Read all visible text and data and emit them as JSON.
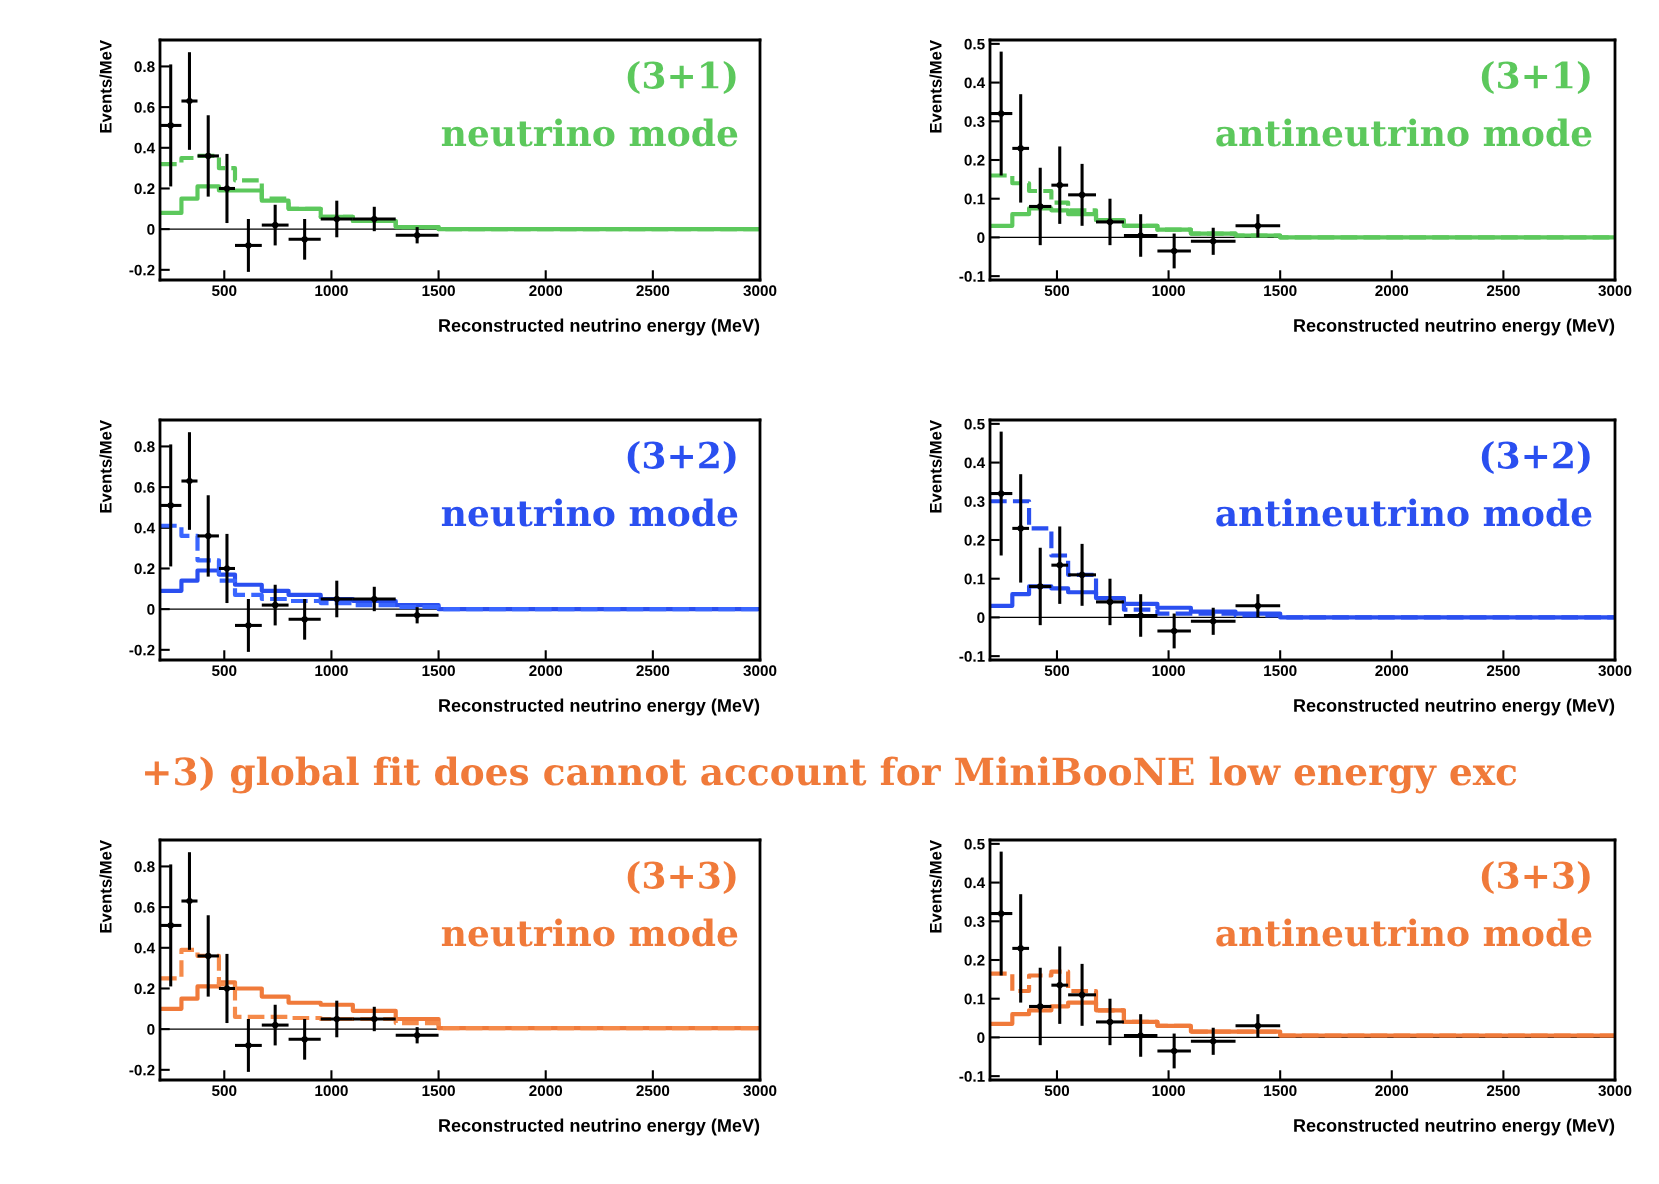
{
  "chart_data": [
    {
      "type": "histogram",
      "title": "(3+1)",
      "subtitle": "neutrino mode",
      "xlabel": "Reconstructed neutrino energy (MeV)",
      "ylabel": "Events/MeV",
      "xlim": [
        200,
        3000
      ],
      "ylim": [
        -0.25,
        0.93
      ],
      "xticks": [
        500,
        1000,
        1500,
        2000,
        2500,
        3000
      ],
      "yticks": [
        -0.2,
        0,
        0.2,
        0.4,
        0.6,
        0.8
      ],
      "ref_lines": [
        {
          "axis": "y",
          "value": 0,
          "color": "#000000"
        }
      ],
      "series": [
        {
          "color": "#5cc85c",
          "line_style": "solid",
          "bins": [
            200,
            300,
            375,
            475,
            550,
            675,
            800,
            950,
            1100,
            1300,
            1500,
            3000
          ],
          "values": [
            0.08,
            0.15,
            0.21,
            0.19,
            0.19,
            0.14,
            0.1,
            0.06,
            0.04,
            0.01,
            0.0
          ]
        },
        {
          "color": "#5cc85c",
          "line_style": "dashed",
          "bins": [
            200,
            300,
            375,
            475,
            550,
            675,
            800,
            950,
            1100,
            1300,
            1500,
            3000
          ],
          "values": [
            0.32,
            0.35,
            0.36,
            0.3,
            0.24,
            0.15,
            0.1,
            0.06,
            0.04,
            0.01,
            0.0
          ]
        },
        {
          "type": "scatter",
          "color": "#000000",
          "x": [
            250,
            337.5,
            425,
            512.5,
            612.5,
            737.5,
            875,
            1025,
            1200,
            1400
          ],
          "values": [
            0.51,
            0.63,
            0.36,
            0.2,
            -0.08,
            0.02,
            -0.05,
            0.05,
            0.05,
            -0.03
          ],
          "errors": [
            0.3,
            0.24,
            0.2,
            0.17,
            0.13,
            0.1,
            0.1,
            0.09,
            0.06,
            0.04
          ],
          "xerrors": [
            50,
            37.5,
            50,
            37.5,
            62.5,
            62.5,
            75,
            75,
            100,
            100
          ]
        }
      ]
    },
    {
      "type": "histogram",
      "title": "(3+1)",
      "subtitle": "antineutrino mode",
      "xlabel": "Reconstructed neutrino energy (MeV)",
      "ylabel": "Events/MeV",
      "xlim": [
        200,
        3000
      ],
      "ylim": [
        -0.11,
        0.51
      ],
      "xticks": [
        500,
        1000,
        1500,
        2000,
        2500,
        3000
      ],
      "yticks": [
        -0.1,
        0,
        0.1,
        0.2,
        0.3,
        0.4,
        0.5
      ],
      "ref_lines": [
        {
          "axis": "y",
          "value": 0,
          "color": "#000000"
        }
      ],
      "series": [
        {
          "color": "#5cc85c",
          "line_style": "solid",
          "bins": [
            200,
            300,
            375,
            475,
            550,
            675,
            800,
            950,
            1100,
            1300,
            1500,
            3000
          ],
          "values": [
            0.03,
            0.06,
            0.075,
            0.07,
            0.06,
            0.045,
            0.03,
            0.02,
            0.01,
            0.005,
            0.0
          ]
        },
        {
          "color": "#5cc85c",
          "line_style": "dashed",
          "bins": [
            200,
            300,
            375,
            475,
            550,
            675,
            800,
            950,
            1100,
            1300,
            1500,
            3000
          ],
          "values": [
            0.16,
            0.14,
            0.12,
            0.09,
            0.07,
            0.045,
            0.03,
            0.02,
            0.01,
            0.005,
            0.0
          ]
        },
        {
          "type": "scatter",
          "color": "#000000",
          "x": [
            250,
            337.5,
            425,
            512.5,
            612.5,
            737.5,
            875,
            1025,
            1200,
            1400
          ],
          "values": [
            0.32,
            0.23,
            0.08,
            0.135,
            0.11,
            0.04,
            0.005,
            -0.035,
            -0.01,
            0.03
          ],
          "errors": [
            0.16,
            0.14,
            0.1,
            0.1,
            0.08,
            0.06,
            0.055,
            0.045,
            0.035,
            0.03
          ],
          "xerrors": [
            50,
            37.5,
            50,
            37.5,
            62.5,
            62.5,
            75,
            75,
            100,
            100
          ]
        }
      ]
    },
    {
      "type": "histogram",
      "title": "(3+2)",
      "subtitle": "neutrino mode",
      "xlabel": "Reconstructed neutrino energy (MeV)",
      "ylabel": "Events/MeV",
      "xlim": [
        200,
        3000
      ],
      "ylim": [
        -0.25,
        0.93
      ],
      "xticks": [
        500,
        1000,
        1500,
        2000,
        2500,
        3000
      ],
      "yticks": [
        -0.2,
        0,
        0.2,
        0.4,
        0.6,
        0.8
      ],
      "ref_lines": [
        {
          "axis": "y",
          "value": 0,
          "color": "#000000"
        }
      ],
      "series": [
        {
          "color": "#2a4ff0",
          "line_style": "solid",
          "bins": [
            200,
            300,
            375,
            475,
            550,
            675,
            800,
            950,
            1100,
            1300,
            1500,
            3000
          ],
          "values": [
            0.09,
            0.14,
            0.19,
            0.17,
            0.12,
            0.09,
            0.07,
            0.05,
            0.04,
            0.02,
            0.0
          ]
        },
        {
          "color": "#3a66ff",
          "line_style": "dashed",
          "bins": [
            200,
            300,
            375,
            475,
            550,
            675,
            800,
            950,
            1100,
            1300,
            1500,
            3000
          ],
          "values": [
            0.41,
            0.36,
            0.24,
            0.14,
            0.07,
            0.05,
            0.04,
            0.03,
            0.02,
            0.01,
            0.0
          ]
        },
        {
          "type": "scatter",
          "color": "#000000",
          "x": [
            250,
            337.5,
            425,
            512.5,
            612.5,
            737.5,
            875,
            1025,
            1200,
            1400
          ],
          "values": [
            0.51,
            0.63,
            0.36,
            0.2,
            -0.08,
            0.02,
            -0.05,
            0.05,
            0.05,
            -0.03
          ],
          "errors": [
            0.3,
            0.24,
            0.2,
            0.17,
            0.13,
            0.1,
            0.1,
            0.09,
            0.06,
            0.04
          ],
          "xerrors": [
            50,
            37.5,
            50,
            37.5,
            62.5,
            62.5,
            75,
            75,
            100,
            100
          ]
        }
      ]
    },
    {
      "type": "histogram",
      "title": "(3+2)",
      "subtitle": "antineutrino mode",
      "xlabel": "Reconstructed neutrino energy (MeV)",
      "ylabel": "Events/MeV",
      "xlim": [
        200,
        3000
      ],
      "ylim": [
        -0.11,
        0.51
      ],
      "xticks": [
        500,
        1000,
        1500,
        2000,
        2500,
        3000
      ],
      "yticks": [
        -0.1,
        0,
        0.1,
        0.2,
        0.3,
        0.4,
        0.5
      ],
      "ref_lines": [
        {
          "axis": "y",
          "value": 0,
          "color": "#000000"
        }
      ],
      "series": [
        {
          "color": "#2a4ff0",
          "line_style": "solid",
          "bins": [
            200,
            300,
            375,
            475,
            550,
            675,
            800,
            950,
            1100,
            1300,
            1500,
            3000
          ],
          "values": [
            0.03,
            0.06,
            0.08,
            0.075,
            0.065,
            0.05,
            0.035,
            0.025,
            0.015,
            0.01,
            0.0
          ]
        },
        {
          "color": "#2a4ff0",
          "line_style": "dashed",
          "bins": [
            200,
            300,
            375,
            475,
            550,
            675,
            800,
            950,
            1100,
            1300,
            1500,
            3000
          ],
          "values": [
            0.3,
            0.3,
            0.23,
            0.16,
            0.11,
            0.05,
            0.02,
            0.01,
            0.01,
            0.005,
            0.0
          ]
        },
        {
          "type": "scatter",
          "color": "#000000",
          "x": [
            250,
            337.5,
            425,
            512.5,
            612.5,
            737.5,
            875,
            1025,
            1200,
            1400
          ],
          "values": [
            0.32,
            0.23,
            0.08,
            0.135,
            0.11,
            0.04,
            0.005,
            -0.035,
            -0.01,
            0.03
          ],
          "errors": [
            0.16,
            0.14,
            0.1,
            0.1,
            0.08,
            0.06,
            0.055,
            0.045,
            0.035,
            0.03
          ],
          "xerrors": [
            50,
            37.5,
            50,
            37.5,
            62.5,
            62.5,
            75,
            75,
            100,
            100
          ]
        }
      ]
    },
    {
      "type": "histogram",
      "title": "(3+3)",
      "subtitle": "neutrino mode",
      "xlabel": "Reconstructed neutrino energy (MeV)",
      "ylabel": "Events/MeV",
      "xlim": [
        200,
        3000
      ],
      "ylim": [
        -0.25,
        0.93
      ],
      "xticks": [
        500,
        1000,
        1500,
        2000,
        2500,
        3000
      ],
      "yticks": [
        -0.2,
        0,
        0.2,
        0.4,
        0.6,
        0.8
      ],
      "ref_lines": [
        {
          "axis": "y",
          "value": 0,
          "color": "#000000"
        }
      ],
      "annotations": [
        "+3) global fit does cannot account for MiniBooNE low energy exc"
      ],
      "series": [
        {
          "color": "#f07a3a",
          "line_style": "solid",
          "bins": [
            200,
            300,
            375,
            475,
            550,
            675,
            800,
            950,
            1100,
            1300,
            1500,
            3000
          ],
          "values": [
            0.1,
            0.15,
            0.21,
            0.23,
            0.2,
            0.16,
            0.13,
            0.12,
            0.09,
            0.05,
            0.005
          ]
        },
        {
          "color": "#f58a4a",
          "line_style": "dashed",
          "bins": [
            200,
            300,
            375,
            475,
            550,
            675,
            800,
            950,
            1100,
            1300,
            1500,
            3000
          ],
          "values": [
            0.25,
            0.39,
            0.36,
            0.22,
            0.06,
            0.06,
            0.055,
            0.05,
            0.05,
            0.03,
            0.005
          ]
        },
        {
          "type": "scatter",
          "color": "#000000",
          "x": [
            250,
            337.5,
            425,
            512.5,
            612.5,
            737.5,
            875,
            1025,
            1200,
            1400
          ],
          "values": [
            0.51,
            0.63,
            0.36,
            0.2,
            -0.08,
            0.02,
            -0.05,
            0.05,
            0.05,
            -0.03
          ],
          "errors": [
            0.3,
            0.24,
            0.2,
            0.17,
            0.13,
            0.1,
            0.1,
            0.09,
            0.06,
            0.04
          ],
          "xerrors": [
            50,
            37.5,
            50,
            37.5,
            62.5,
            62.5,
            75,
            75,
            100,
            100
          ]
        }
      ]
    },
    {
      "type": "histogram",
      "title": "(3+3)",
      "subtitle": "antineutrino mode",
      "xlabel": "Reconstructed neutrino energy (MeV)",
      "ylabel": "Events/MeV",
      "xlim": [
        200,
        3000
      ],
      "ylim": [
        -0.11,
        0.51
      ],
      "xticks": [
        500,
        1000,
        1500,
        2000,
        2500,
        3000
      ],
      "yticks": [
        -0.1,
        0,
        0.1,
        0.2,
        0.3,
        0.4,
        0.5
      ],
      "ref_lines": [
        {
          "axis": "y",
          "value": 0,
          "color": "#000000"
        }
      ],
      "series": [
        {
          "color": "#f07a3a",
          "line_style": "solid",
          "bins": [
            200,
            300,
            375,
            475,
            550,
            675,
            800,
            950,
            1100,
            1300,
            1500,
            3000
          ],
          "values": [
            0.035,
            0.06,
            0.07,
            0.08,
            0.09,
            0.07,
            0.04,
            0.03,
            0.015,
            0.015,
            0.005
          ]
        },
        {
          "color": "#f07a3a",
          "line_style": "dashed",
          "bins": [
            200,
            300,
            375,
            475,
            550,
            675,
            800,
            950,
            1100,
            1300,
            1500,
            3000
          ],
          "values": [
            0.165,
            0.12,
            0.16,
            0.17,
            0.12,
            0.07,
            0.04,
            0.03,
            0.015,
            0.015,
            0.005
          ]
        },
        {
          "type": "scatter",
          "color": "#000000",
          "x": [
            250,
            337.5,
            425,
            512.5,
            612.5,
            737.5,
            875,
            1025,
            1200,
            1400
          ],
          "values": [
            0.32,
            0.23,
            0.08,
            0.135,
            0.11,
            0.04,
            0.005,
            -0.035,
            -0.01,
            0.03
          ],
          "errors": [
            0.16,
            0.14,
            0.1,
            0.1,
            0.08,
            0.06,
            0.055,
            0.045,
            0.035,
            0.03
          ],
          "xerrors": [
            50,
            37.5,
            50,
            37.5,
            62.5,
            62.5,
            75,
            75,
            100,
            100
          ]
        }
      ]
    }
  ]
}
